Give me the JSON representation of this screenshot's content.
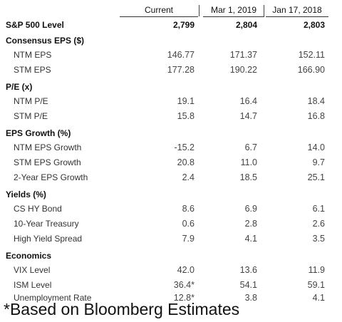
{
  "header": {
    "current": "Current",
    "mar_2019": "Mar 1, 2019",
    "jan_2018": "Jan 17, 2018"
  },
  "sp500": {
    "label": "S&P 500 Level",
    "current": "2,799",
    "mar_2019": "2,804",
    "jan_2018": "2,803"
  },
  "sections": [
    {
      "title": "Consensus EPS ($)",
      "rows": [
        {
          "label": "NTM EPS",
          "current": "146.77",
          "mar_2019": "171.37",
          "jan_2018": "152.11"
        },
        {
          "label": "STM EPS",
          "current": "177.28",
          "mar_2019": "190.22",
          "jan_2018": "166.90"
        }
      ]
    },
    {
      "title": "P/E (x)",
      "rows": [
        {
          "label": "NTM P/E",
          "current": "19.1",
          "mar_2019": "16.4",
          "jan_2018": "18.4"
        },
        {
          "label": "STM P/E",
          "current": "15.8",
          "mar_2019": "14.7",
          "jan_2018": "16.8"
        }
      ]
    },
    {
      "title": "EPS Growth (%)",
      "rows": [
        {
          "label": "NTM EPS Growth",
          "current": "-15.2",
          "mar_2019": "6.7",
          "jan_2018": "14.0"
        },
        {
          "label": "STM EPS Growth",
          "current": "20.8",
          "mar_2019": "11.0",
          "jan_2018": "9.7"
        },
        {
          "label": "2-Year EPS Growth",
          "current": "2.4",
          "mar_2019": "18.5",
          "jan_2018": "25.1"
        }
      ]
    },
    {
      "title": "Yields (%)",
      "rows": [
        {
          "label": "CS HY Bond",
          "current": "8.6",
          "mar_2019": "6.9",
          "jan_2018": "6.1"
        },
        {
          "label": "10-Year Treasury",
          "current": "0.6",
          "mar_2019": "2.8",
          "jan_2018": "2.6"
        },
        {
          "label": "High Yield Spread",
          "current": "7.9",
          "mar_2019": "4.1",
          "jan_2018": "3.5"
        }
      ]
    },
    {
      "title": "Economics",
      "rows": [
        {
          "label": "VIX Level",
          "current": "42.0",
          "mar_2019": "13.6",
          "jan_2018": "11.9"
        },
        {
          "label": "ISM Level",
          "current": "36.4*",
          "mar_2019": "54.1",
          "jan_2018": "59.1"
        },
        {
          "label": "Unemployment Rate",
          "current": "12.8*",
          "mar_2019": "3.8",
          "jan_2018": "4.1"
        }
      ]
    }
  ],
  "footnote": "*Based on Bloomberg Estimates"
}
